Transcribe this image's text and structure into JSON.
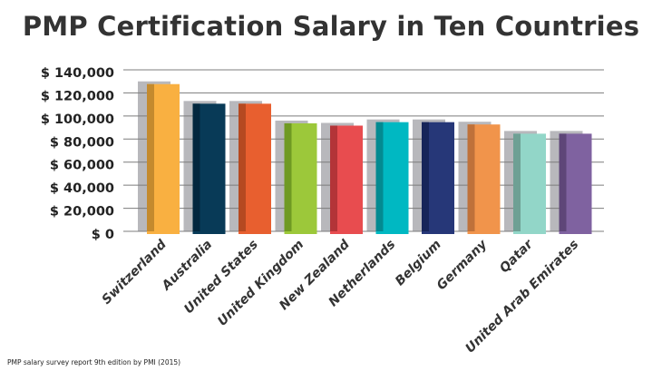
{
  "chart_data": {
    "type": "bar",
    "title": "PMP Certification Salary in Ten Countries",
    "categories": [
      "Switzerland",
      "Australia",
      "United States",
      "United Kingdom",
      "New Zealand",
      "Netherlands",
      "Belgium",
      "Germany",
      "Qatar",
      "United Arab Emirates"
    ],
    "values": [
      130000,
      113000,
      113000,
      96000,
      94000,
      97000,
      97000,
      95000,
      87000,
      87000
    ],
    "ylim": [
      0,
      140000
    ],
    "yticks": [
      0,
      20000,
      40000,
      60000,
      80000,
      100000,
      120000,
      140000
    ],
    "ytick_labels": [
      "$ 0",
      "$ 20,000",
      "$ 40,000",
      "$ 60,000",
      "$ 80,000",
      "$ 100,000",
      "$ 120,000",
      "$ 140,000"
    ],
    "xlabel": "",
    "ylabel": "",
    "grid": true,
    "colors": [
      "#f9b041",
      "#083a57",
      "#e85f2f",
      "#9cc83a",
      "#e84c4f",
      "#00b8c2",
      "#263778",
      "#f1944b",
      "#92d6c8",
      "#7f62a0"
    ],
    "shade_colors": [
      "#c48a2e",
      "#03273e",
      "#b54921",
      "#6f9a23",
      "#b33438",
      "#038a91",
      "#172559",
      "#bf713a",
      "#6ea094",
      "#5e4678"
    ]
  },
  "source": "PMP salary survey report 9th edition by PMI (2015)"
}
